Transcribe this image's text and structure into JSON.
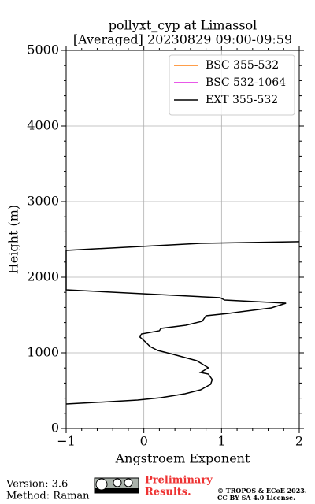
{
  "chart_data": {
    "type": "line",
    "title": "pollyxt_cyp at Limassol",
    "subtitle": "[Averaged] 20230829 09:00-09:59",
    "x_label": "Angstroem Exponent",
    "y_label": "Height (m)",
    "y": [
      2470,
      2448,
      2354,
      1833,
      1729,
      1698,
      1656,
      1594,
      1542,
      1521,
      1490,
      1417,
      1365,
      1323,
      1292,
      1250,
      1208,
      1146,
      1083,
      1031,
      979,
      896,
      802,
      740,
      719,
      646,
      583,
      510,
      458,
      406,
      375,
      354,
      323
    ],
    "series": [
      {
        "name": "BSC 355-532",
        "color": "#ff7f0e",
        "values": [
          null,
          null,
          null,
          null,
          null,
          null,
          null,
          null,
          null,
          null,
          null,
          null,
          null,
          null,
          null,
          null,
          null,
          null,
          null,
          null,
          null,
          null,
          null,
          null,
          null,
          null,
          null,
          null,
          null,
          null,
          null,
          null,
          null
        ]
      },
      {
        "name": "BSC 532-1064",
        "color": "#e020e0",
        "values": [
          null,
          null,
          null,
          null,
          null,
          null,
          null,
          null,
          null,
          null,
          null,
          null,
          null,
          null,
          null,
          null,
          null,
          null,
          null,
          null,
          null,
          null,
          null,
          null,
          null,
          null,
          null,
          null,
          null,
          null,
          null,
          null,
          null
        ]
      },
      {
        "name": "EXT 355-532",
        "color": "#000000",
        "values": [
          2.0,
          0.73,
          -1.0,
          -1.0,
          0.98,
          1.04,
          1.83,
          1.64,
          1.24,
          1.09,
          0.8,
          0.75,
          0.54,
          0.22,
          0.2,
          -0.03,
          -0.05,
          0.02,
          0.08,
          0.18,
          0.38,
          0.68,
          0.83,
          0.73,
          0.83,
          0.88,
          0.86,
          0.73,
          0.53,
          0.22,
          -0.08,
          -0.43,
          -1.0
        ]
      }
    ],
    "xlim": [
      -1,
      2
    ],
    "xticks": [
      {
        "value": -1,
        "label": "−1"
      },
      0,
      1,
      2
    ],
    "ylim": [
      0,
      5000
    ],
    "yticks": [
      0,
      1000,
      2000,
      3000,
      4000,
      5000
    ],
    "grid": true,
    "legend": "upper right"
  },
  "footer": {
    "version": "Version: 3.6",
    "method": "Method: Raman",
    "status": [
      "Preliminary",
      "Results."
    ],
    "copyright": "© TROPOS & ECoE 2023.",
    "license": "CC BY SA 4.0 License."
  }
}
